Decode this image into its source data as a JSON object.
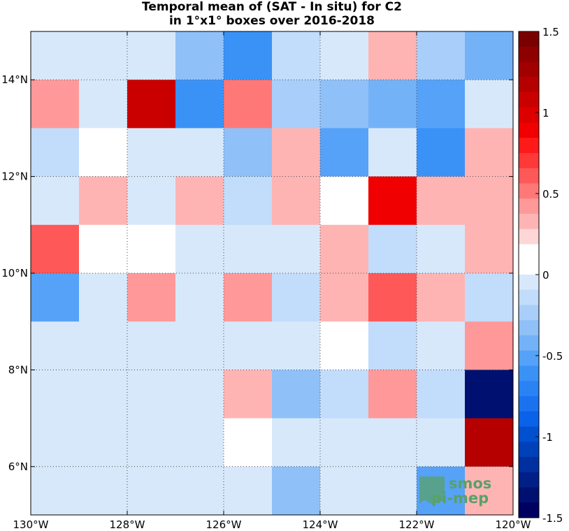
{
  "chart_data": {
    "type": "heatmap",
    "title": [
      "Temporal mean of (SAT - In situ) for C2",
      "in 1°x1° boxes over 2016-2018"
    ],
    "x_ticks": [
      {
        "value": -130,
        "label": "130°W"
      },
      {
        "value": -128,
        "label": "128°W"
      },
      {
        "value": -126,
        "label": "126°W"
      },
      {
        "value": -124,
        "label": "124°W"
      },
      {
        "value": -122,
        "label": "122°W"
      },
      {
        "value": -120,
        "label": "120°W"
      }
    ],
    "y_ticks": [
      {
        "value": 6,
        "label": "6°N"
      },
      {
        "value": 8,
        "label": "8°N"
      },
      {
        "value": 10,
        "label": "10°N"
      },
      {
        "value": 12,
        "label": "12°N"
      },
      {
        "value": 14,
        "label": "14°N"
      }
    ],
    "xlim": [
      -130,
      -120
    ],
    "ylim": [
      5,
      15
    ],
    "grid": true,
    "colorbar": {
      "range": [
        -1.5,
        1.5
      ],
      "ticks": [
        {
          "value": 1.5,
          "label": "1.5"
        },
        {
          "value": 1,
          "label": "1"
        },
        {
          "value": 0.5,
          "label": "0.5"
        },
        {
          "value": 0,
          "label": "0"
        },
        {
          "value": -0.5,
          "label": "-0.5"
        },
        {
          "value": -1,
          "label": "-1"
        },
        {
          "value": -1.5,
          "label": "-1.5"
        }
      ],
      "colors_top_to_bottom": [
        "#7a0000",
        "#8e0000",
        "#a20000",
        "#b60000",
        "#ca0000",
        "#dd0000",
        "#f00000",
        "#ff1a1a",
        "#ff3838",
        "#ff5858",
        "#ff7878",
        "#ff9999",
        "#ffb4b4",
        "#ffd6d6",
        "#ffffff",
        "#ffffff",
        "#d8e8fb",
        "#c2dcfb",
        "#a8cef9",
        "#8fc0f8",
        "#74b2f8",
        "#55a2f8",
        "#3a92f7",
        "#2a82f5",
        "#1a72f0",
        "#0a62e8",
        "#0050d0",
        "#0040b8",
        "#0030a0",
        "#002088",
        "#001070",
        "#000060"
      ]
    },
    "cells_lat_rows_top_to_bottom": [
      [
        0,
        0,
        0,
        -0.3,
        -0.6,
        -0.15,
        0,
        0.3,
        -0.25,
        -0.4
      ],
      [
        0.4,
        0,
        1.1,
        -0.65,
        0.55,
        -0.25,
        -0.35,
        -0.45,
        -0.5,
        0
      ],
      [
        -0.15,
        0.15,
        0,
        0,
        -0.3,
        0.3,
        -0.5,
        0,
        -0.65,
        0.3
      ],
      [
        0,
        0.3,
        0,
        0.3,
        -0.15,
        0.3,
        0.15,
        0.85,
        0.3,
        0.3
      ],
      [
        0.65,
        0.15,
        0.15,
        0,
        0,
        0,
        0.3,
        -0.15,
        0,
        0.3
      ],
      [
        -0.5,
        0,
        0.4,
        0,
        0.45,
        -0.15,
        0.3,
        0.65,
        0.3,
        -0.15
      ],
      [
        0,
        0,
        0,
        0,
        0,
        0,
        0.15,
        -0.15,
        0,
        0.45
      ],
      [
        0,
        0,
        0,
        0,
        0.3,
        -0.3,
        -0.15,
        0.45,
        -0.15,
        -1.35
      ],
      [
        0,
        0,
        0,
        0,
        0.15,
        0,
        0,
        0,
        0,
        1.2
      ],
      [
        0,
        0,
        0,
        0,
        0,
        -0.35,
        0,
        0,
        -0.5,
        0.3
      ]
    ],
    "logo_text": [
      "smos",
      "pi-mep"
    ]
  }
}
